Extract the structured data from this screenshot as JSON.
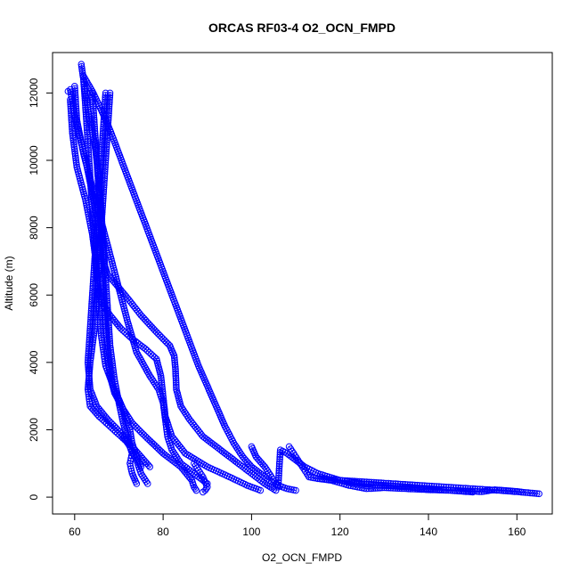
{
  "chart_data": {
    "type": "scatter",
    "title": "ORCAS RF03-4 O2_OCN_FMPD",
    "xlabel": "O2_OCN_FMPD",
    "ylabel": "Altitude (m)",
    "xlim": [
      55,
      168
    ],
    "ylim": [
      -500,
      13200
    ],
    "xticks": [
      60,
      80,
      100,
      120,
      140,
      160
    ],
    "yticks": [
      0,
      2000,
      4000,
      6000,
      8000,
      10000,
      12000
    ],
    "grid": false,
    "color": "#0000ff",
    "marker": "open-circle",
    "series": [
      {
        "x": [
          61.5,
          62,
          63,
          64.5,
          65.5,
          66,
          66.5,
          67,
          67.5,
          68,
          69,
          70,
          71,
          72,
          73,
          72.5,
          73,
          74
        ],
        "y": [
          12850,
          12400,
          11500,
          10500,
          9500,
          8500,
          7500,
          6500,
          5500,
          4500,
          3500,
          2800,
          2200,
          1700,
          1300,
          1000,
          700,
          400
        ]
      },
      {
        "x": [
          58.5,
          59,
          60.5,
          62.5,
          64,
          65.5,
          66,
          66.5,
          67,
          67.5,
          68,
          69,
          71,
          73,
          76,
          80,
          84,
          86.5,
          87,
          87.5
        ],
        "y": [
          12050,
          12100,
          11000,
          10000,
          9000,
          8000,
          7000,
          6000,
          5000,
          4200,
          3600,
          3100,
          2600,
          2200,
          1800,
          1300,
          900,
          500,
          300,
          200
        ]
      },
      {
        "x": [
          59,
          59.5,
          60.5,
          62.5,
          64,
          65,
          65.5,
          66,
          67,
          69,
          71,
          72.5,
          73,
          74,
          75
        ],
        "y": [
          11800,
          10800,
          9800,
          8800,
          7800,
          6800,
          5800,
          4800,
          3900,
          3200,
          2600,
          2000,
          1600,
          1200,
          900
        ]
      },
      {
        "x": [
          60,
          60.5,
          62,
          64,
          66,
          68,
          70,
          72,
          74,
          77,
          79,
          80,
          80.5,
          81,
          82,
          84,
          87,
          90
        ],
        "y": [
          12200,
          11200,
          10200,
          9200,
          8200,
          7200,
          6200,
          5200,
          4300,
          3600,
          3200,
          2800,
          2300,
          1800,
          1400,
          1000,
          700,
          400
        ]
      },
      {
        "x": [
          64,
          64.5,
          65,
          65.5,
          66,
          66.5,
          67.5,
          69.5,
          72,
          75,
          78.5,
          81.5,
          82.5,
          82.8,
          83,
          84,
          86,
          89,
          93,
          97,
          100,
          103,
          105.5
        ],
        "y": [
          12000,
          11000,
          10000,
          9000,
          8000,
          7000,
          6600,
          6300,
          5900,
          5400,
          4900,
          4500,
          4200,
          3800,
          3200,
          2700,
          2300,
          1800,
          1400,
          1000,
          700,
          400,
          200
        ]
      },
      {
        "x": [
          62,
          62.5,
          63,
          63.5,
          64,
          64.5,
          65,
          66,
          68,
          70.5,
          73,
          76,
          78.5,
          79.5,
          80,
          80.5,
          82,
          85,
          90,
          95,
          99,
          102
        ],
        "y": [
          12400,
          11500,
          10500,
          9500,
          8500,
          7500,
          6500,
          5800,
          5400,
          5000,
          4700,
          4400,
          4100,
          3600,
          3000,
          2400,
          1800,
          1300,
          900,
          600,
          350,
          200
        ]
      },
      {
        "x": [
          68,
          67.5,
          67,
          66.5,
          66,
          65.5,
          65,
          64.5,
          63.5,
          63,
          63.5,
          65.5,
          68,
          70.5,
          73,
          75,
          77
        ],
        "y": [
          12000,
          11000,
          10000,
          9000,
          8000,
          7000,
          6000,
          5000,
          4000,
          3200,
          2700,
          2400,
          2100,
          1800,
          1500,
          1200,
          900
        ]
      },
      {
        "x": [
          67,
          66.5,
          66,
          65.5,
          65,
          64.5,
          64,
          63.5,
          63,
          63.5,
          65,
          67.5,
          70.5,
          72.5,
          74,
          75,
          76.5
        ],
        "y": [
          12000,
          11000,
          10000,
          9000,
          8000,
          7000,
          6000,
          5000,
          4000,
          3200,
          2700,
          2300,
          1900,
          1500,
          1100,
          700,
          400
        ]
      },
      {
        "x": [
          62,
          64,
          66,
          68,
          70,
          72,
          74,
          76,
          78,
          80,
          82,
          84,
          86,
          88,
          90,
          92,
          94,
          96,
          98,
          100,
          102,
          104,
          106,
          108,
          110
        ],
        "y": [
          12500,
          12050,
          11500,
          10900,
          10200,
          9500,
          8800,
          8100,
          7400,
          6700,
          6000,
          5300,
          4600,
          3900,
          3300,
          2700,
          2100,
          1600,
          1200,
          900,
          700,
          500,
          350,
          250,
          200
        ]
      },
      {
        "x": [
          87,
          88,
          89,
          89.5,
          90,
          89.5,
          89
        ],
        "y": [
          1000,
          800,
          600,
          450,
          300,
          200,
          150
        ]
      },
      {
        "x": [
          100,
          101,
          103,
          104.5,
          105.5,
          106,
          106.5,
          108,
          110,
          112,
          115,
          120,
          125,
          130,
          135,
          140,
          145,
          150
        ],
        "y": [
          1500,
          1200,
          900,
          600,
          400,
          300,
          1400,
          1300,
          1100,
          900,
          700,
          500,
          400,
          350,
          300,
          250,
          200,
          150
        ]
      },
      {
        "x": [
          108.5,
          109.5,
          110.5,
          111.5,
          112.5,
          113,
          115,
          120,
          126,
          132,
          138,
          144,
          150,
          156,
          161,
          165
        ],
        "y": [
          1500,
          1300,
          1100,
          900,
          700,
          600,
          550,
          500,
          450,
          400,
          350,
          300,
          250,
          200,
          150,
          100
        ]
      },
      {
        "x": [
          115,
          118,
          122,
          124,
          126,
          130,
          135,
          140,
          145,
          148,
          150,
          152,
          155,
          160,
          161
        ],
        "y": [
          550,
          500,
          350,
          300,
          250,
          280,
          250,
          220,
          200,
          180,
          180,
          160,
          220,
          170,
          150
        ]
      }
    ]
  }
}
